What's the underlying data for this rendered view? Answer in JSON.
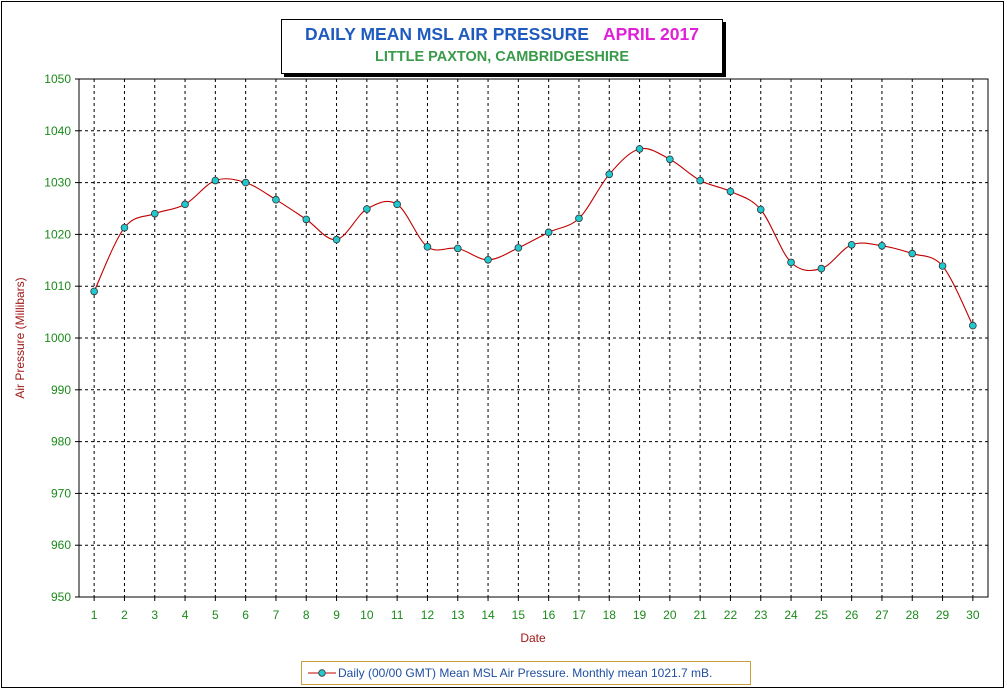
{
  "chart_data": {
    "type": "line",
    "title": "DAILY MEAN MSL AIR PRESSURE",
    "title_period": "APRIL 2017",
    "subtitle": "LITTLE PAXTON, CAMBRIDGESHIRE",
    "xlabel": "Date",
    "ylabel": "Air Pressure (Millibars)",
    "x": [
      1,
      2,
      3,
      4,
      5,
      6,
      7,
      8,
      9,
      10,
      11,
      12,
      13,
      14,
      15,
      16,
      17,
      18,
      19,
      20,
      21,
      22,
      23,
      24,
      25,
      26,
      27,
      28,
      29,
      30
    ],
    "x_tick_labels": [
      "1",
      "2",
      "3",
      "4",
      "5",
      "6",
      "7",
      "8",
      "9",
      "10",
      "11",
      "12",
      "13",
      "14",
      "15",
      "16",
      "17",
      "18",
      "19",
      "20",
      "21",
      "22",
      "23",
      "24",
      "25",
      "26",
      "27",
      "28",
      "29",
      "30"
    ],
    "y_tick_labels": [
      "950",
      "960",
      "970",
      "980",
      "990",
      "1000",
      "1010",
      "1020",
      "1030",
      "1040",
      "1050"
    ],
    "ylim": [
      950,
      1050
    ],
    "grid": true,
    "legend_position": "bottom",
    "series": [
      {
        "name": "Daily (00/00 GMT) Mean MSL Air Pressure. Monthly mean 1021.7 mB.",
        "values": [
          1009.0,
          1021.3,
          1024.0,
          1025.8,
          1030.4,
          1030.0,
          1026.7,
          1022.9,
          1019.0,
          1024.9,
          1025.8,
          1017.6,
          1017.3,
          1015.1,
          1017.4,
          1020.4,
          1023.1,
          1031.6,
          1036.5,
          1034.5,
          1030.4,
          1028.3,
          1024.8,
          1014.6,
          1013.4,
          1018.0,
          1017.8,
          1016.3,
          1013.9,
          1002.4
        ]
      }
    ],
    "colors": {
      "line": "#c00000",
      "marker_fill": "#20c8d0",
      "axis_text": "#1a8a1a",
      "axis_title": "#a01818"
    }
  }
}
